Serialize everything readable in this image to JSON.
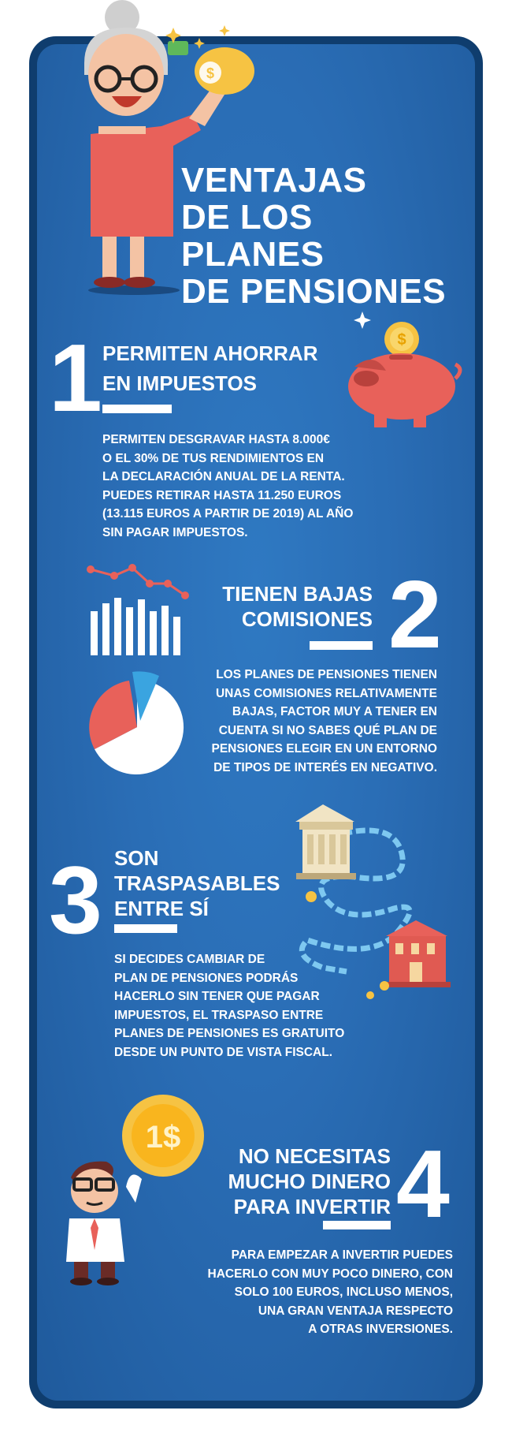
{
  "title": [
    "VENTAJAS",
    "DE LOS PLANES",
    "DE PENSIONES"
  ],
  "colors": {
    "panel_blue": "#2a6db5",
    "frame_navy": "#0f3d6e",
    "coral": "#e8615a",
    "gold": "#f6c343",
    "light_blue": "#3aa4e0"
  },
  "sections": [
    {
      "number": "1",
      "heading": [
        "PERMITEN AHORRAR",
        "EN IMPUESTOS"
      ],
      "body": [
        "PERMITEN DESGRAVAR HASTA 8.000€",
        "O EL 30% DE TUS RENDIMIENTOS EN",
        "LA DECLARACIÓN ANUAL DE LA RENTA.",
        "PUEDES RETIRAR HASTA 11.250 EUROS",
        "(13.115 EUROS A PARTIR DE 2019) AL AÑO",
        "SIN PAGAR IMPUESTOS."
      ],
      "icon": "piggy-bank-icon"
    },
    {
      "number": "2",
      "heading": [
        "TIENEN BAJAS",
        "COMISIONES"
      ],
      "body": [
        "LOS PLANES DE PENSIONES TIENEN",
        "UNAS COMISIONES RELATIVAMENTE",
        "BAJAS, FACTOR MUY A TENER EN",
        "CUENTA SI NO SABES QUÉ PLAN DE",
        "PENSIONES ELEGIR EN UN ENTORNO",
        "DE TIPOS DE INTERÉS EN NEGATIVO."
      ],
      "icon": "bar-chart-pie-chart-icon"
    },
    {
      "number": "3",
      "heading": [
        "SON",
        "TRASPASABLES",
        "ENTRE SÍ"
      ],
      "body": [
        "SI DECIDES CAMBIAR DE",
        "PLAN DE PENSIONES PODRÁS",
        "HACERLO SIN TENER QUE PAGAR",
        "IMPUESTOS, EL TRASPASO ENTRE",
        "PLANES DE PENSIONES ES GRATUITO",
        "DESDE UN PUNTO DE VISTA FISCAL."
      ],
      "icon": "bank-transfer-icon"
    },
    {
      "number": "4",
      "heading": [
        "NO NECESITAS",
        "MUCHO DINERO",
        "PARA INVERTIR"
      ],
      "body": [
        "PARA EMPEZAR A INVERTIR PUEDES",
        "HACERLO CON MUY POCO DINERO, CON",
        "SOLO 100 EUROS, INCLUSO MENOS,",
        "UNA GRAN VENTAJA RESPECTO",
        "A OTRAS INVERSIONES."
      ],
      "icon": "businessman-coin-icon"
    }
  ],
  "coin_label": "1$",
  "piggy_coin_label": "$"
}
